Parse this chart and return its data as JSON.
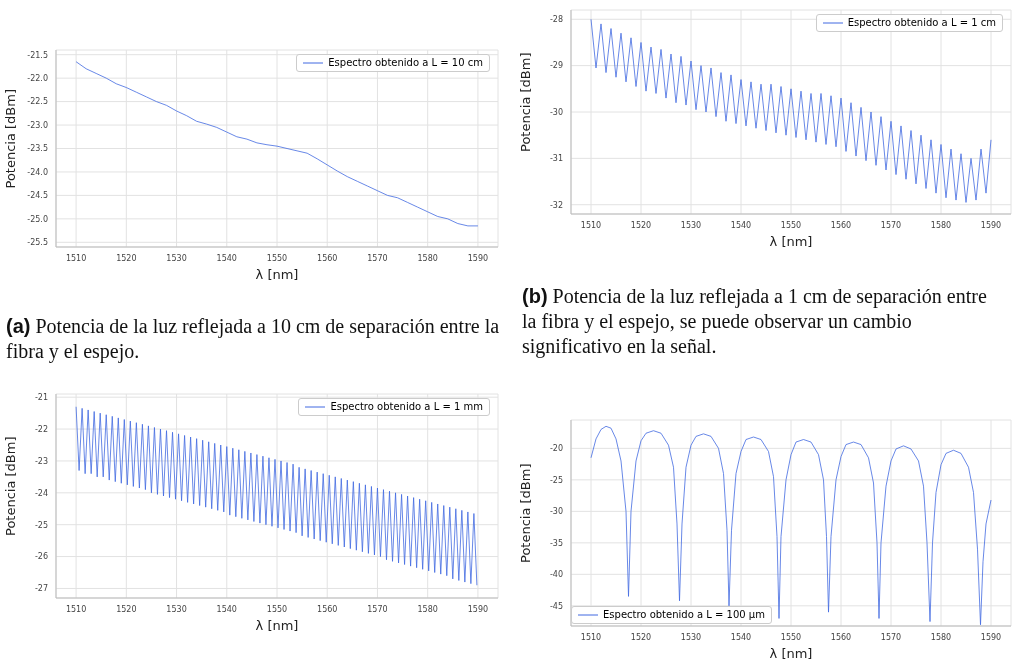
{
  "chart_data": [
    {
      "type": "line",
      "xlabel": "λ [nm]",
      "ylabel": "Potencia [dBm]",
      "annotations": [
        "(a) Potencia de la luz reflejada a 10 cm de separación entre la fibra y el espejo."
      ],
      "xlim": [
        1506,
        1594
      ],
      "xticks": [
        1510,
        1520,
        1530,
        1540,
        1550,
        1560,
        1570,
        1580,
        1590
      ],
      "ylim": [
        -25.6,
        -21.4
      ],
      "yticks": [
        -21.5,
        {
          "value": -22,
          "label": "-22.0"
        },
        -22.5,
        {
          "value": -23,
          "label": "-23.0"
        },
        -23.5,
        {
          "value": -24,
          "label": "-24.0"
        },
        -24.5,
        {
          "value": -25,
          "label": "-25.0"
        },
        -25.5
      ],
      "grid": true,
      "legend": "top right",
      "marker": "none",
      "line_style": "solid",
      "series": [
        {
          "name": "Espectro obtenido a L = 10 cm",
          "color": "#4169e1",
          "x": [
            1510,
            1512,
            1514,
            1516,
            1518,
            1520,
            1522,
            1524,
            1526,
            1528,
            1530,
            1532,
            1534,
            1536,
            1538,
            1540,
            1542,
            1544,
            1546,
            1548,
            1550,
            1552,
            1554,
            1556,
            1558,
            1560,
            1562,
            1564,
            1566,
            1568,
            1570,
            1572,
            1574,
            1576,
            1578,
            1580,
            1582,
            1584,
            1586,
            1588,
            1590
          ],
          "values": [
            -21.65,
            -21.8,
            -21.9,
            -22.0,
            -22.12,
            -22.2,
            -22.3,
            -22.4,
            -22.5,
            -22.58,
            -22.7,
            -22.8,
            -22.92,
            -22.98,
            -23.05,
            -23.15,
            -23.25,
            -23.3,
            -23.38,
            -23.42,
            -23.45,
            -23.5,
            -23.55,
            -23.6,
            -23.72,
            -23.85,
            -23.98,
            -24.1,
            -24.2,
            -24.3,
            -24.4,
            -24.5,
            -24.55,
            -24.65,
            -24.75,
            -24.85,
            -24.95,
            -25.0,
            -25.1,
            -25.15,
            -25.15
          ]
        }
      ]
    },
    {
      "type": "line",
      "xlabel": "λ [nm]",
      "ylabel": "Potencia [dBm]",
      "annotations": [
        "(b) Potencia de la luz reflejada a 1 cm de separación entre la fibra y el espejo, se puede observar un cambio significativo en la señal."
      ],
      "xlim": [
        1506,
        1594
      ],
      "xticks": [
        1510,
        1520,
        1530,
        1540,
        1550,
        1560,
        1570,
        1580,
        1590
      ],
      "ylim": [
        -32.2,
        -27.8
      ],
      "yticks": [
        -28,
        -29,
        -30,
        -31,
        -32
      ],
      "grid": true,
      "legend": "top right",
      "marker": "none",
      "line_style": "solid",
      "series": [
        {
          "name": "Espectro obtenido a L = 1 cm",
          "color": "#4169e1",
          "x": [
            1510,
            1511,
            1512,
            1513,
            1514,
            1515,
            1516,
            1517,
            1518,
            1519,
            1520,
            1521,
            1522,
            1523,
            1524,
            1525,
            1526,
            1527,
            1528,
            1529,
            1530,
            1531,
            1532,
            1533,
            1534,
            1535,
            1536,
            1537,
            1538,
            1539,
            1540,
            1541,
            1542,
            1543,
            1544,
            1545,
            1546,
            1547,
            1548,
            1549,
            1550,
            1551,
            1552,
            1553,
            1554,
            1555,
            1556,
            1557,
            1558,
            1559,
            1560,
            1561,
            1562,
            1563,
            1564,
            1565,
            1566,
            1567,
            1568,
            1569,
            1570,
            1571,
            1572,
            1573,
            1574,
            1575,
            1576,
            1577,
            1578,
            1579,
            1580,
            1581,
            1582,
            1583,
            1584,
            1585,
            1586,
            1587,
            1588,
            1589,
            1590
          ],
          "values": [
            -28.0,
            -29.05,
            -28.1,
            -29.15,
            -28.2,
            -29.25,
            -28.3,
            -29.35,
            -28.4,
            -29.45,
            -28.5,
            -29.55,
            -28.6,
            -29.6,
            -28.65,
            -29.7,
            -28.75,
            -29.8,
            -28.8,
            -29.85,
            -28.9,
            -29.95,
            -29.0,
            -30.0,
            -29.05,
            -30.1,
            -29.15,
            -30.2,
            -29.2,
            -30.25,
            -29.3,
            -30.3,
            -29.35,
            -30.35,
            -29.4,
            -30.4,
            -29.4,
            -30.45,
            -29.45,
            -30.5,
            -29.5,
            -30.55,
            -29.55,
            -30.6,
            -29.6,
            -30.65,
            -29.6,
            -30.7,
            -29.65,
            -30.75,
            -29.7,
            -30.85,
            -29.8,
            -30.95,
            -29.9,
            -31.05,
            -30.0,
            -31.15,
            -30.1,
            -31.25,
            -30.2,
            -31.35,
            -30.3,
            -31.45,
            -30.4,
            -31.55,
            -30.5,
            -31.65,
            -30.6,
            -31.75,
            -30.7,
            -31.85,
            -30.8,
            -31.9,
            -30.9,
            -31.95,
            -31.0,
            -31.9,
            -30.8,
            -31.75,
            -30.6
          ]
        }
      ]
    },
    {
      "type": "line",
      "xlabel": "λ [nm]",
      "ylabel": "Potencia [dBm]",
      "xlim": [
        1506,
        1594
      ],
      "xticks": [
        1510,
        1520,
        1530,
        1540,
        1550,
        1560,
        1570,
        1580,
        1590
      ],
      "ylim": [
        -27.3,
        -20.9
      ],
      "yticks": [
        -21,
        -22,
        -23,
        -24,
        -25,
        -26,
        -27
      ],
      "grid": true,
      "legend": "top right",
      "marker": "none",
      "line_style": "solid",
      "series": [
        {
          "name": "Espectro obtenido a L = 1 mm",
          "color": "#4169e1",
          "x": [
            1510,
            1510.6,
            1511.2,
            1511.8,
            1512.4,
            1513,
            1513.6,
            1514.2,
            1514.8,
            1515.4,
            1516,
            1516.6,
            1517.2,
            1517.8,
            1518.4,
            1519,
            1519.6,
            1520.2,
            1520.8,
            1521.4,
            1522,
            1522.6,
            1523.2,
            1523.8,
            1524.4,
            1525,
            1525.6,
            1526.2,
            1526.8,
            1527.4,
            1528,
            1528.6,
            1529.2,
            1529.8,
            1530.4,
            1531,
            1531.6,
            1532.2,
            1532.8,
            1533.4,
            1534,
            1534.6,
            1535.2,
            1535.8,
            1536.4,
            1537,
            1537.6,
            1538.2,
            1538.8,
            1539.4,
            1540,
            1540.6,
            1541.2,
            1541.8,
            1542.4,
            1543,
            1543.6,
            1544.2,
            1544.8,
            1545.4,
            1546,
            1546.6,
            1547.2,
            1547.8,
            1548.4,
            1549,
            1549.6,
            1550.2,
            1550.8,
            1551.4,
            1552,
            1552.6,
            1553.2,
            1553.8,
            1554.4,
            1555,
            1555.6,
            1556.2,
            1556.8,
            1557.4,
            1558,
            1558.6,
            1559.2,
            1559.8,
            1560.4,
            1561,
            1561.6,
            1562.2,
            1562.8,
            1563.4,
            1564,
            1564.6,
            1565.2,
            1565.8,
            1566.4,
            1567,
            1567.6,
            1568.2,
            1568.8,
            1569.4,
            1570,
            1570.6,
            1571.2,
            1571.8,
            1572.4,
            1573,
            1573.6,
            1574.2,
            1574.8,
            1575.4,
            1576,
            1576.6,
            1577.2,
            1577.8,
            1578.4,
            1579,
            1579.6,
            1580.2,
            1580.8,
            1581.4,
            1582,
            1582.6,
            1583.2,
            1583.8,
            1584.4,
            1585,
            1585.6,
            1586.2,
            1586.8,
            1587.4,
            1588,
            1588.6,
            1589.2,
            1589.8
          ],
          "values": [
            -21.3,
            -23.3,
            -21.35,
            -23.4,
            -21.4,
            -23.4,
            -21.45,
            -23.5,
            -21.5,
            -23.5,
            -21.55,
            -23.6,
            -21.6,
            -23.65,
            -21.65,
            -23.7,
            -21.7,
            -23.75,
            -21.75,
            -23.8,
            -21.8,
            -23.85,
            -21.85,
            -23.9,
            -21.9,
            -24.0,
            -21.95,
            -24.05,
            -22.0,
            -24.1,
            -22.05,
            -24.15,
            -22.1,
            -24.2,
            -22.15,
            -24.25,
            -22.2,
            -24.3,
            -22.25,
            -24.35,
            -22.3,
            -24.4,
            -22.35,
            -24.45,
            -22.4,
            -24.5,
            -22.45,
            -24.55,
            -22.5,
            -24.6,
            -22.55,
            -24.7,
            -22.6,
            -24.75,
            -22.65,
            -24.8,
            -22.7,
            -24.85,
            -22.75,
            -24.9,
            -22.8,
            -24.95,
            -22.85,
            -25.0,
            -22.9,
            -25.05,
            -22.95,
            -25.1,
            -23.0,
            -25.15,
            -23.05,
            -25.2,
            -23.1,
            -25.25,
            -23.2,
            -25.35,
            -23.25,
            -25.4,
            -23.3,
            -25.45,
            -23.35,
            -25.5,
            -23.4,
            -25.55,
            -23.45,
            -25.6,
            -23.5,
            -25.65,
            -23.55,
            -25.7,
            -23.6,
            -25.75,
            -23.65,
            -25.8,
            -23.7,
            -25.85,
            -23.75,
            -25.9,
            -23.8,
            -25.95,
            -23.85,
            -26.0,
            -23.9,
            -26.1,
            -23.95,
            -26.15,
            -24.0,
            -26.2,
            -24.05,
            -26.25,
            -24.1,
            -26.3,
            -24.15,
            -26.35,
            -24.2,
            -26.4,
            -24.25,
            -26.45,
            -24.3,
            -26.5,
            -24.35,
            -26.55,
            -24.4,
            -26.6,
            -24.45,
            -26.7,
            -24.5,
            -26.75,
            -24.55,
            -26.8,
            -24.6,
            -26.85,
            -24.65,
            -26.9
          ]
        }
      ]
    },
    {
      "type": "line",
      "xlabel": "λ [nm]",
      "ylabel": "Potencia [dBm]",
      "xlim": [
        1506,
        1594
      ],
      "xticks": [
        1510,
        1520,
        1530,
        1540,
        1550,
        1560,
        1570,
        1580,
        1590
      ],
      "ylim": [
        -48.2,
        -15.5
      ],
      "yticks": [
        -20,
        -25,
        -30,
        -35,
        -40,
        -45
      ],
      "grid": true,
      "legend": "bottom left",
      "marker": "none",
      "line_style": "solid",
      "series": [
        {
          "name": "Espectro obtenido a L = 100 μm",
          "color": "#4169e1",
          "x": [
            1510,
            1511,
            1512,
            1513,
            1514,
            1515,
            1516,
            1517,
            1517.5,
            1518,
            1519,
            1520,
            1521,
            1522.5,
            1524,
            1525.5,
            1526.5,
            1527.2,
            1527.7,
            1528.2,
            1529,
            1530,
            1531,
            1532.5,
            1534,
            1535.5,
            1536.5,
            1537.2,
            1537.6,
            1538.1,
            1539,
            1540,
            1541,
            1542.5,
            1544,
            1545.5,
            1546.5,
            1547.2,
            1547.6,
            1548,
            1549,
            1550,
            1551,
            1552.5,
            1554,
            1555.5,
            1556.5,
            1557.1,
            1557.5,
            1558,
            1559,
            1560,
            1561,
            1562.5,
            1564,
            1565.5,
            1566.5,
            1567.2,
            1567.6,
            1568,
            1569,
            1570,
            1571,
            1572.5,
            1574,
            1575.5,
            1576.5,
            1577.2,
            1577.8,
            1578.3,
            1579,
            1580,
            1581,
            1582.5,
            1584,
            1585.5,
            1586.5,
            1587.3,
            1587.9,
            1588.4,
            1589,
            1590
          ],
          "values": [
            -21.5,
            -18.5,
            -17.0,
            -16.5,
            -16.8,
            -18.5,
            -22,
            -30,
            -43.5,
            -30,
            -22,
            -18.8,
            -17.6,
            -17.2,
            -17.6,
            -19.5,
            -23,
            -32,
            -44.2,
            -32,
            -23,
            -19.5,
            -18.1,
            -17.7,
            -18.1,
            -20,
            -24,
            -33,
            -45,
            -33,
            -24,
            -20.5,
            -18.6,
            -18.2,
            -18.6,
            -20.5,
            -24.5,
            -34,
            -47,
            -34,
            -25,
            -21,
            -19,
            -18.6,
            -19,
            -21,
            -25,
            -34,
            -46,
            -34,
            -25,
            -21.3,
            -19.4,
            -19.0,
            -19.4,
            -21.5,
            -25.5,
            -35,
            -47,
            -35,
            -26,
            -22,
            -20.1,
            -19.6,
            -20.1,
            -22,
            -26,
            -35,
            -47.5,
            -35,
            -27,
            -22.6,
            -20.8,
            -20.3,
            -20.8,
            -23,
            -27,
            -36,
            -48,
            -38,
            -32,
            -28.2
          ]
        }
      ]
    }
  ]
}
